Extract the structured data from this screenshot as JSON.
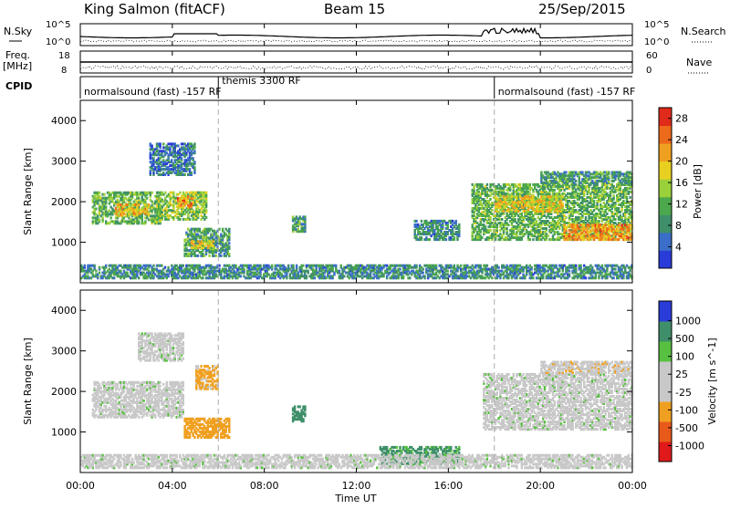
{
  "header": {
    "station": "King Salmon (fitACF)",
    "beam": "Beam 15",
    "date": "25/Sep/2015"
  },
  "strips": {
    "nsky": {
      "label": "N.Sky",
      "ticks_left": [
        "10^5",
        "10^0"
      ],
      "right_label": "N.Search",
      "ticks_right": [
        "10^5",
        "10^0"
      ]
    },
    "freq": {
      "label_line1": "Freq.",
      "label_line2": "[MHz]",
      "ticks_left": [
        "18",
        "8"
      ],
      "right_label": "Nave",
      "ticks_right": [
        "60",
        "0"
      ]
    },
    "cpid": {
      "label": "CPID",
      "segments": [
        {
          "label": "normalsound (fast) -157 RF",
          "start_hour": 0
        },
        {
          "label": "themis 3300 RF",
          "start_hour": 6
        },
        {
          "label": "normalsound (fast) -157 RF",
          "start_hour": 18
        }
      ]
    }
  },
  "xaxis": {
    "label": "Time UT",
    "ticks": [
      "00:00",
      "04:00",
      "08:00",
      "12:00",
      "16:00",
      "20:00",
      "00:00"
    ],
    "range_hours": [
      0,
      24
    ]
  },
  "colors": {
    "power": [
      "#2a3cd8",
      "#3a6ec8",
      "#3f8f6a",
      "#4ca84c",
      "#9ad03a",
      "#e8d020",
      "#f0a020",
      "#ec6a1a",
      "#e02a1a"
    ],
    "velocity": [
      "#e01a1a",
      "#e85a1a",
      "#f0a020",
      "#c8c8c8",
      "#c8c8c8",
      "#58c040",
      "#3f8f6a",
      "#2a3cd8"
    ]
  },
  "chart_data": [
    {
      "type": "heatmap",
      "panel": "power",
      "ylabel": "Slant Range [km]",
      "ylim": [
        0,
        4500
      ],
      "yticks": [
        "1000",
        "2000",
        "3000",
        "4000"
      ],
      "xlabel": "Time UT",
      "xlim_hours": [
        0,
        24
      ],
      "colorbar": {
        "label": "Power [dB]",
        "ticks": [
          "4",
          "8",
          "12",
          "16",
          "20",
          "24",
          "28"
        ],
        "range": [
          0,
          30
        ]
      },
      "regions": [
        {
          "t0": 0.5,
          "t1": 3.5,
          "r0": 1500,
          "r1": 2300,
          "value": 12
        },
        {
          "t0": 1.5,
          "t1": 3.0,
          "r0": 1700,
          "r1": 2000,
          "value": 20
        },
        {
          "t0": 3.3,
          "t1": 5.5,
          "r0": 1600,
          "r1": 2300,
          "value": 14
        },
        {
          "t0": 4.2,
          "t1": 5.0,
          "r0": 1900,
          "r1": 2200,
          "value": 22
        },
        {
          "t0": 4.5,
          "t1": 6.5,
          "r0": 700,
          "r1": 1400,
          "value": 10
        },
        {
          "t0": 4.8,
          "t1": 5.8,
          "r0": 900,
          "r1": 1100,
          "value": 18
        },
        {
          "t0": 3.0,
          "t1": 5.0,
          "r0": 2700,
          "r1": 3500,
          "value": 6
        },
        {
          "t0": 9.2,
          "t1": 9.8,
          "r0": 1300,
          "r1": 1700,
          "value": 10
        },
        {
          "t0": 14.5,
          "t1": 16.5,
          "r0": 1100,
          "r1": 1600,
          "value": 8
        },
        {
          "t0": 17.0,
          "t1": 24.0,
          "r0": 1100,
          "r1": 2500,
          "value": 12
        },
        {
          "t0": 18.0,
          "t1": 21.0,
          "r0": 1800,
          "r1": 2200,
          "value": 18
        },
        {
          "t0": 21.0,
          "t1": 24.0,
          "r0": 1100,
          "r1": 1500,
          "value": 22
        },
        {
          "t0": 20.0,
          "t1": 24.0,
          "r0": 2500,
          "r1": 2800,
          "value": 10
        },
        {
          "t0": 0.0,
          "t1": 24.0,
          "r0": 150,
          "r1": 500,
          "value": 8
        }
      ]
    },
    {
      "type": "heatmap",
      "panel": "velocity",
      "ylabel": "Slant Range [km]",
      "ylim": [
        0,
        4500
      ],
      "yticks": [
        "1000",
        "2000",
        "3000",
        "4000"
      ],
      "xlabel": "Time UT",
      "xlim_hours": [
        0,
        24
      ],
      "colorbar": {
        "label": "Velocity [m s^-1]",
        "ticks": [
          "-1000",
          "-500",
          "-100",
          "-25",
          "25",
          "100",
          "500",
          "1000"
        ]
      },
      "regions": [
        {
          "t0": 0.5,
          "t1": 4.5,
          "r0": 1400,
          "r1": 2300,
          "value": 0
        },
        {
          "t0": 4.5,
          "t1": 6.5,
          "r0": 900,
          "r1": 1400,
          "value": -150
        },
        {
          "t0": 5.0,
          "t1": 6.0,
          "r0": 2100,
          "r1": 2700,
          "value": -120
        },
        {
          "t0": 2.5,
          "t1": 4.5,
          "r0": 2800,
          "r1": 3500,
          "value": 0
        },
        {
          "t0": 9.2,
          "t1": 9.8,
          "r0": 1300,
          "r1": 1700,
          "value": 150
        },
        {
          "t0": 17.5,
          "t1": 24.0,
          "r0": 1100,
          "r1": 2500,
          "value": 0
        },
        {
          "t0": 20.0,
          "t1": 24.0,
          "r0": 2500,
          "r1": 2800,
          "value": -80
        },
        {
          "t0": 13.0,
          "t1": 16.5,
          "r0": 250,
          "r1": 700,
          "value": 120
        },
        {
          "t0": 0.0,
          "t1": 24.0,
          "r0": 150,
          "r1": 500,
          "value": 0
        }
      ]
    }
  ]
}
